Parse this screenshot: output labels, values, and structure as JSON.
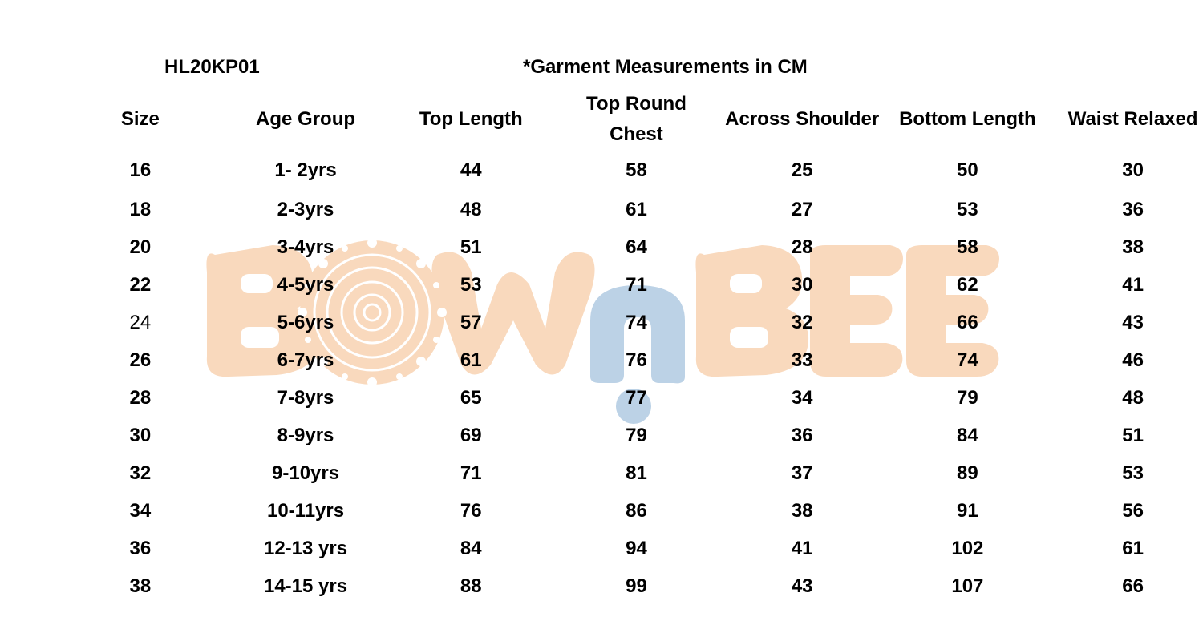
{
  "style_code": "HL20KP01",
  "measurement_note": "*Garment Measurements in CM",
  "watermark": {
    "text": "BOWnBEE",
    "colors": {
      "peach": "#f9d9bd",
      "blue": "#bcd2e6",
      "mandala": "#ffffff"
    }
  },
  "table": {
    "headers": [
      "Size",
      "Age Group",
      "Top Length",
      "Top Round Chest",
      "Across Shoulder",
      "Bottom Length",
      "Waist Relaxed"
    ],
    "rows": [
      [
        "16",
        "1- 2yrs",
        "44",
        "58",
        "25",
        "50",
        "30"
      ],
      [
        "18",
        "2-3yrs",
        "48",
        "61",
        "27",
        "53",
        "36"
      ],
      [
        "20",
        "3-4yrs",
        "51",
        "64",
        "28",
        "58",
        "38"
      ],
      [
        "22",
        "4-5yrs",
        "53",
        "71",
        "30",
        "62",
        "41"
      ],
      [
        "24",
        "5-6yrs",
        "57",
        "74",
        "32",
        "66",
        "43"
      ],
      [
        "26",
        "6-7yrs",
        "61",
        "76",
        "33",
        "74",
        "46"
      ],
      [
        "28",
        "7-8yrs",
        "65",
        "77",
        "34",
        "79",
        "48"
      ],
      [
        "30",
        "8-9yrs",
        "69",
        "79",
        "36",
        "84",
        "51"
      ],
      [
        "32",
        "9-10yrs",
        "71",
        "81",
        "37",
        "89",
        "53"
      ],
      [
        "34",
        "10-11yrs",
        "76",
        "86",
        "38",
        "91",
        "56"
      ],
      [
        "36",
        "12-13 yrs",
        "84",
        "94",
        "41",
        "102",
        "61"
      ],
      [
        "38",
        "14-15 yrs",
        "88",
        "99",
        "43",
        "107",
        "66"
      ]
    ]
  }
}
